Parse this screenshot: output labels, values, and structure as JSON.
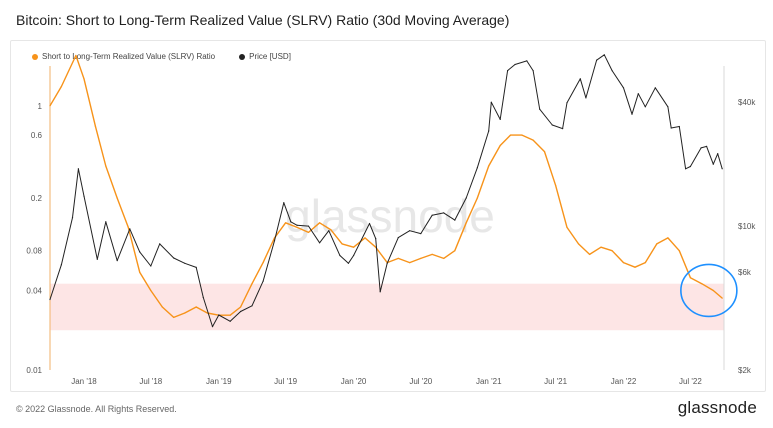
{
  "title": "Bitcoin: Short to Long-Term Realized Value (SLRV) Ratio (30d Moving Average)",
  "footer": "© 2022 Glassnode. All Rights Reserved.",
  "brand": "glassnode",
  "watermark": "glassnode",
  "colors": {
    "slrv": "#f7931a",
    "price": "#222222",
    "band": "#fde0e0",
    "circle": "#1e90ff"
  },
  "chart_data": {
    "type": "line",
    "legend_position": "top-left",
    "x_ticks": [
      "Jan '18",
      "Jul '18",
      "Jan '19",
      "Jul '19",
      "Jan '20",
      "Jul '20",
      "Jan '21",
      "Jul '21",
      "Jan '22",
      "Jul '22"
    ],
    "x_range": [
      "2017-10-01",
      "2022-09-30"
    ],
    "y_left": {
      "scale": "log",
      "range": [
        0.01,
        2
      ],
      "ticks": [
        "0.01",
        "0.04",
        "0.08",
        "0.2",
        "0.6",
        "1"
      ]
    },
    "y_right": {
      "scale": "log",
      "range": [
        2000,
        60000
      ],
      "ticks": [
        "$2k",
        "$6k",
        "$10k",
        "$40k"
      ]
    },
    "band": {
      "axis": "left",
      "low": 0.02,
      "high": 0.045
    },
    "series": [
      {
        "name": "Short to Long-Term Realized Value (SLRV) Ratio",
        "axis": "left",
        "points": [
          [
            "2017-10-01",
            1.0
          ],
          [
            "2017-11-01",
            1.4
          ],
          [
            "2017-12-10",
            2.4
          ],
          [
            "2018-01-01",
            1.6
          ],
          [
            "2018-02-01",
            0.7
          ],
          [
            "2018-03-01",
            0.35
          ],
          [
            "2018-04-01",
            0.2
          ],
          [
            "2018-05-01",
            0.12
          ],
          [
            "2018-06-01",
            0.055
          ],
          [
            "2018-07-01",
            0.04
          ],
          [
            "2018-08-01",
            0.03
          ],
          [
            "2018-09-01",
            0.025
          ],
          [
            "2018-10-01",
            0.027
          ],
          [
            "2018-11-01",
            0.03
          ],
          [
            "2018-12-01",
            0.027
          ],
          [
            "2019-01-01",
            0.026
          ],
          [
            "2019-02-01",
            0.026
          ],
          [
            "2019-03-01",
            0.03
          ],
          [
            "2019-04-01",
            0.045
          ],
          [
            "2019-05-01",
            0.065
          ],
          [
            "2019-06-01",
            0.1
          ],
          [
            "2019-07-01",
            0.13
          ],
          [
            "2019-08-01",
            0.12
          ],
          [
            "2019-09-01",
            0.11
          ],
          [
            "2019-10-01",
            0.13
          ],
          [
            "2019-11-01",
            0.115
          ],
          [
            "2019-12-01",
            0.09
          ],
          [
            "2020-01-01",
            0.085
          ],
          [
            "2020-02-01",
            0.1
          ],
          [
            "2020-03-01",
            0.085
          ],
          [
            "2020-04-01",
            0.065
          ],
          [
            "2020-05-01",
            0.07
          ],
          [
            "2020-06-01",
            0.065
          ],
          [
            "2020-07-01",
            0.07
          ],
          [
            "2020-08-01",
            0.075
          ],
          [
            "2020-09-01",
            0.07
          ],
          [
            "2020-10-01",
            0.08
          ],
          [
            "2020-11-01",
            0.13
          ],
          [
            "2020-12-01",
            0.2
          ],
          [
            "2021-01-01",
            0.35
          ],
          [
            "2021-02-01",
            0.5
          ],
          [
            "2021-03-01",
            0.6
          ],
          [
            "2021-04-01",
            0.6
          ],
          [
            "2021-05-01",
            0.55
          ],
          [
            "2021-06-01",
            0.45
          ],
          [
            "2021-07-01",
            0.25
          ],
          [
            "2021-08-01",
            0.12
          ],
          [
            "2021-09-01",
            0.09
          ],
          [
            "2021-10-01",
            0.075
          ],
          [
            "2021-11-01",
            0.085
          ],
          [
            "2021-12-01",
            0.08
          ],
          [
            "2022-01-01",
            0.065
          ],
          [
            "2022-02-01",
            0.06
          ],
          [
            "2022-03-01",
            0.065
          ],
          [
            "2022-04-01",
            0.09
          ],
          [
            "2022-05-01",
            0.1
          ],
          [
            "2022-06-01",
            0.08
          ],
          [
            "2022-07-01",
            0.05
          ],
          [
            "2022-08-01",
            0.045
          ],
          [
            "2022-09-01",
            0.04
          ],
          [
            "2022-09-25",
            0.035
          ]
        ]
      },
      {
        "name": "Price [USD]",
        "axis": "right",
        "points": [
          [
            "2017-10-01",
            4400
          ],
          [
            "2017-11-01",
            6500
          ],
          [
            "2017-12-01",
            11000
          ],
          [
            "2017-12-17",
            19000
          ],
          [
            "2018-01-01",
            14000
          ],
          [
            "2018-02-06",
            6900
          ],
          [
            "2018-03-01",
            10500
          ],
          [
            "2018-04-01",
            6800
          ],
          [
            "2018-05-05",
            9700
          ],
          [
            "2018-06-01",
            7500
          ],
          [
            "2018-07-01",
            6400
          ],
          [
            "2018-07-25",
            8200
          ],
          [
            "2018-09-01",
            7000
          ],
          [
            "2018-10-01",
            6600
          ],
          [
            "2018-11-01",
            6300
          ],
          [
            "2018-11-20",
            4500
          ],
          [
            "2018-12-15",
            3250
          ],
          [
            "2019-01-01",
            3700
          ],
          [
            "2019-02-01",
            3450
          ],
          [
            "2019-03-01",
            3850
          ],
          [
            "2019-04-01",
            4100
          ],
          [
            "2019-05-01",
            5400
          ],
          [
            "2019-06-01",
            8500
          ],
          [
            "2019-06-26",
            13000
          ],
          [
            "2019-07-15",
            10500
          ],
          [
            "2019-08-01",
            10100
          ],
          [
            "2019-09-01",
            10000
          ],
          [
            "2019-10-01",
            8300
          ],
          [
            "2019-10-26",
            9500
          ],
          [
            "2019-11-25",
            7200
          ],
          [
            "2019-12-18",
            6600
          ],
          [
            "2020-01-01",
            7200
          ],
          [
            "2020-02-13",
            10300
          ],
          [
            "2020-03-01",
            8700
          ],
          [
            "2020-03-13",
            4800
          ],
          [
            "2020-04-01",
            6600
          ],
          [
            "2020-05-01",
            8800
          ],
          [
            "2020-06-01",
            9500
          ],
          [
            "2020-07-01",
            9200
          ],
          [
            "2020-08-01",
            11300
          ],
          [
            "2020-09-01",
            11600
          ],
          [
            "2020-10-01",
            10700
          ],
          [
            "2020-11-01",
            13700
          ],
          [
            "2020-12-01",
            19200
          ],
          [
            "2021-01-01",
            29000
          ],
          [
            "2021-01-08",
            40000
          ],
          [
            "2021-02-01",
            33000
          ],
          [
            "2021-02-21",
            57000
          ],
          [
            "2021-03-13",
            61000
          ],
          [
            "2021-04-14",
            63500
          ],
          [
            "2021-05-01",
            57000
          ],
          [
            "2021-05-19",
            37000
          ],
          [
            "2021-06-22",
            31000
          ],
          [
            "2021-07-20",
            29800
          ],
          [
            "2021-08-01",
            39800
          ],
          [
            "2021-09-06",
            52000
          ],
          [
            "2021-09-21",
            42000
          ],
          [
            "2021-10-20",
            64000
          ],
          [
            "2021-11-10",
            68000
          ],
          [
            "2021-12-01",
            57000
          ],
          [
            "2022-01-01",
            47000
          ],
          [
            "2022-01-24",
            35000
          ],
          [
            "2022-02-10",
            44000
          ],
          [
            "2022-03-01",
            38000
          ],
          [
            "2022-03-28",
            47000
          ],
          [
            "2022-05-01",
            38000
          ],
          [
            "2022-05-10",
            30000
          ],
          [
            "2022-06-01",
            30500
          ],
          [
            "2022-06-18",
            19000
          ],
          [
            "2022-07-01",
            19500
          ],
          [
            "2022-07-30",
            24000
          ],
          [
            "2022-08-14",
            24400
          ],
          [
            "2022-09-01",
            20000
          ],
          [
            "2022-09-13",
            22500
          ],
          [
            "2022-09-25",
            19000
          ]
        ]
      }
    ],
    "annotations": [
      {
        "type": "circle",
        "date": "2022-08-20",
        "value_left": 0.04
      }
    ]
  }
}
